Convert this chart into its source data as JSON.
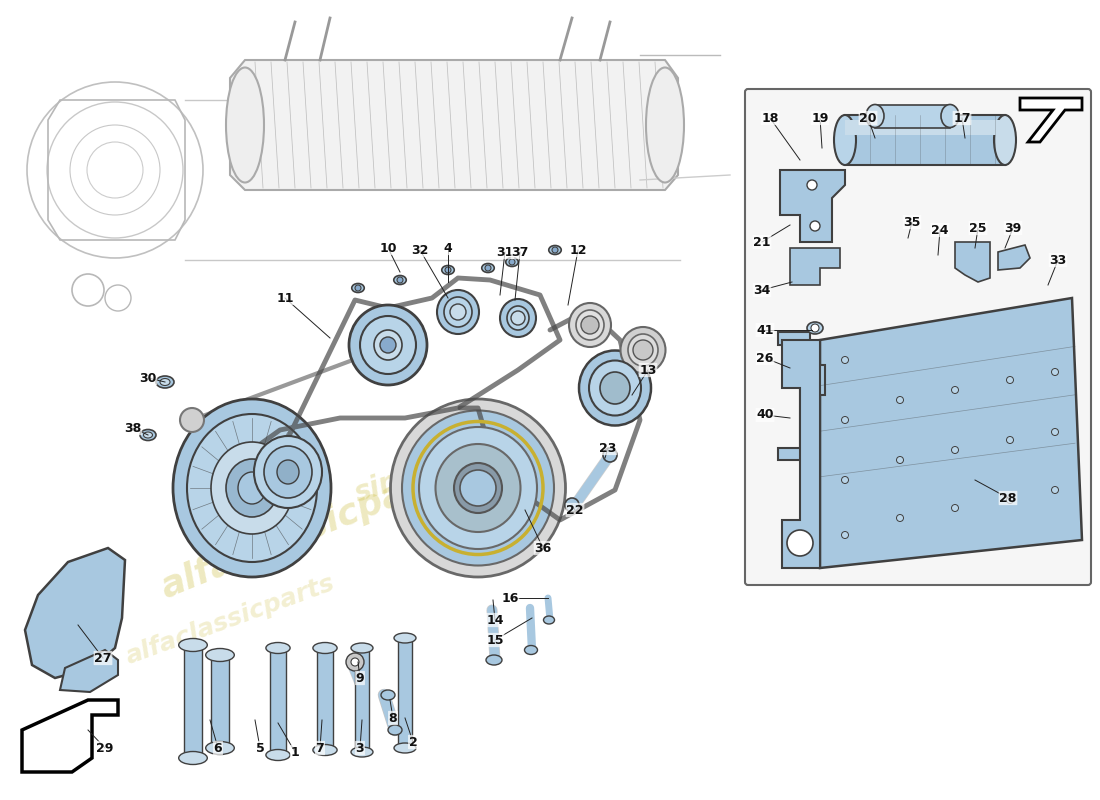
{
  "bg_color": "#ffffff",
  "lb": "#a8c8e0",
  "lb2": "#b8d4e8",
  "lb3": "#c8dcea",
  "outline": "#404040",
  "gray1": "#d0d0d0",
  "gray2": "#b0b0b0",
  "gray3": "#888888",
  "wm_color": "#c8b830",
  "lbl_color": "#111111",
  "line_color": "#333333",
  "inset_bg": "#f6f6f6",
  "inset_border": "#666666",
  "label_fs": 9,
  "main_part_labels": [
    [
      "1",
      295,
      752
    ],
    [
      "2",
      413,
      742
    ],
    [
      "3",
      360,
      748
    ],
    [
      "4",
      448,
      248
    ],
    [
      "5",
      260,
      748
    ],
    [
      "6",
      218,
      748
    ],
    [
      "7",
      320,
      748
    ],
    [
      "8",
      393,
      718
    ],
    [
      "9",
      360,
      678
    ],
    [
      "10",
      388,
      248
    ],
    [
      "11",
      285,
      298
    ],
    [
      "12",
      578,
      250
    ],
    [
      "13",
      648,
      370
    ],
    [
      "14",
      495,
      620
    ],
    [
      "15",
      495,
      640
    ],
    [
      "16",
      510,
      598
    ],
    [
      "22",
      575,
      510
    ],
    [
      "23",
      608,
      448
    ],
    [
      "27",
      103,
      658
    ],
    [
      "29",
      105,
      748
    ],
    [
      "30",
      148,
      378
    ],
    [
      "31",
      505,
      252
    ],
    [
      "32",
      420,
      250
    ],
    [
      "36",
      543,
      548
    ],
    [
      "37",
      520,
      252
    ],
    [
      "38",
      133,
      428
    ]
  ],
  "inset_part_labels": [
    [
      "17",
      962,
      118
    ],
    [
      "18",
      770,
      118
    ],
    [
      "19",
      820,
      118
    ],
    [
      "20",
      868,
      118
    ],
    [
      "21",
      765,
      242
    ],
    [
      "24",
      940,
      230
    ],
    [
      "25",
      978,
      228
    ],
    [
      "26",
      768,
      358
    ],
    [
      "28",
      1008,
      498
    ],
    [
      "33",
      1058,
      260
    ],
    [
      "34",
      765,
      290
    ],
    [
      "35",
      912,
      222
    ],
    [
      "39",
      1013,
      228
    ],
    [
      "40",
      768,
      415
    ],
    [
      "41",
      768,
      330
    ]
  ]
}
